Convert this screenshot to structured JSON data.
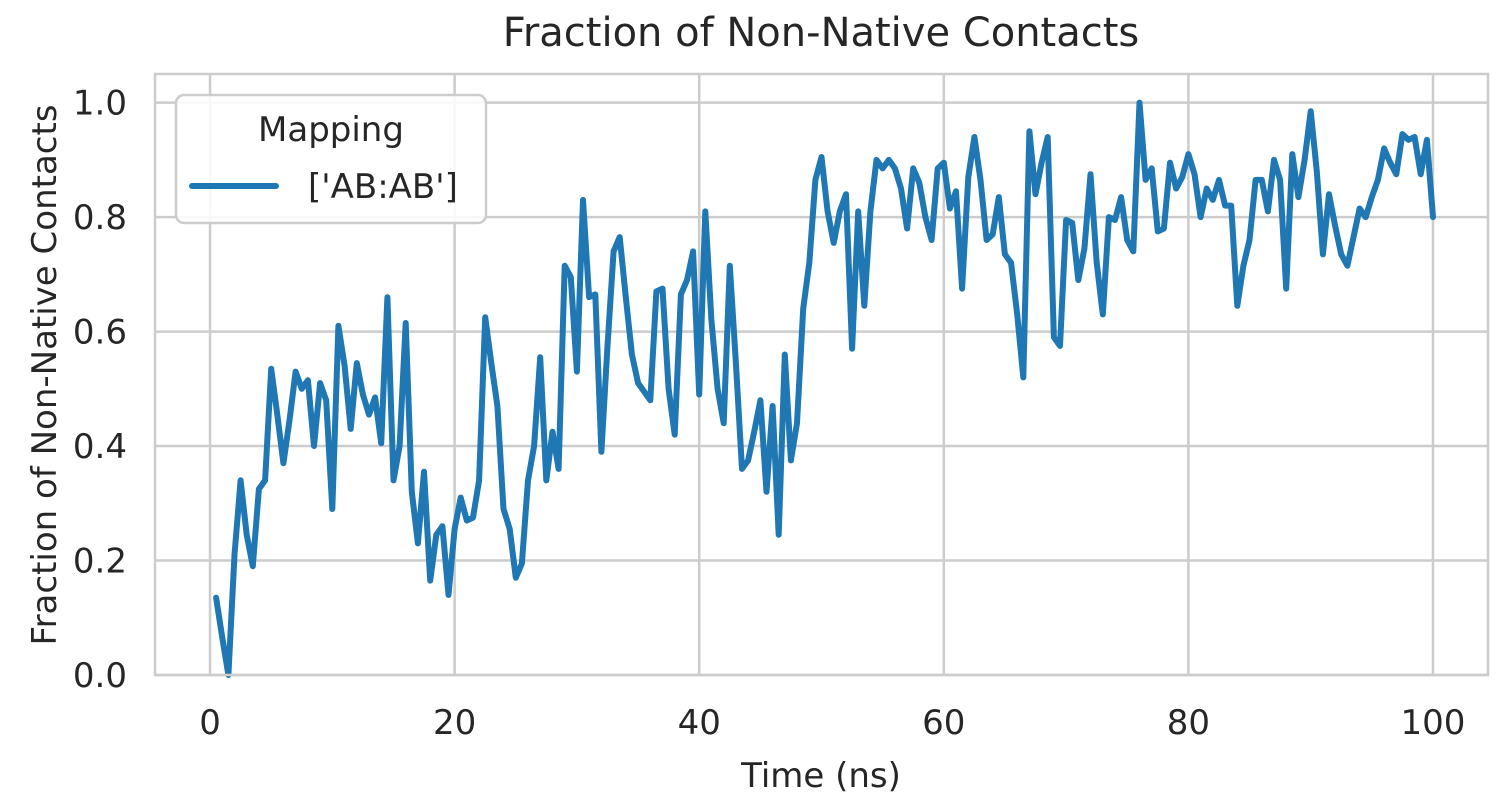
{
  "chart_data": {
    "type": "line",
    "title": "Fraction of Non-Native Contacts",
    "xlabel": "Time (ns)",
    "ylabel": "Fraction of Non-Native Contacts",
    "xlim": [
      -4.5,
      104.5
    ],
    "ylim": [
      0,
      1.05
    ],
    "xticks": [
      0,
      20,
      40,
      60,
      80,
      100
    ],
    "yticks": [
      0.0,
      0.2,
      0.4,
      0.6,
      0.8,
      1.0
    ],
    "xtick_labels": [
      "0",
      "20",
      "40",
      "60",
      "80",
      "100"
    ],
    "ytick_labels": [
      "0.0",
      "0.2",
      "0.4",
      "0.6",
      "0.8",
      "1.0"
    ],
    "grid": true,
    "legend": {
      "title": "Mapping",
      "placement": "upper-left"
    },
    "series": [
      {
        "name": "['AB:AB']",
        "color": "#1f77b4",
        "x": [
          0.5,
          1.0,
          1.5,
          2.0,
          2.5,
          3.0,
          3.5,
          4.0,
          4.5,
          5.0,
          5.5,
          6.0,
          6.5,
          7.0,
          7.5,
          8.0,
          8.5,
          9.0,
          9.5,
          10.0,
          10.5,
          11.0,
          11.5,
          12.0,
          12.5,
          13.0,
          13.5,
          14.0,
          14.5,
          15.0,
          15.5,
          16.0,
          16.5,
          17.0,
          17.5,
          18.0,
          18.5,
          19.0,
          19.5,
          20.0,
          20.5,
          21.0,
          21.5,
          22.0,
          22.5,
          23.0,
          23.5,
          24.0,
          24.5,
          25.0,
          25.5,
          26.0,
          26.5,
          27.0,
          27.5,
          28.0,
          28.5,
          29.0,
          29.5,
          30.0,
          30.5,
          31.0,
          31.5,
          32.0,
          32.5,
          33.0,
          33.5,
          34.0,
          34.5,
          35.0,
          35.5,
          36.0,
          36.5,
          37.0,
          37.5,
          38.0,
          38.5,
          39.0,
          39.5,
          40.0,
          40.5,
          41.0,
          41.5,
          42.0,
          42.5,
          43.0,
          43.5,
          44.0,
          44.5,
          45.0,
          45.5,
          46.0,
          46.5,
          47.0,
          47.5,
          48.0,
          48.5,
          49.0,
          49.5,
          50.0,
          50.5,
          51.0,
          51.5,
          52.0,
          52.5,
          53.0,
          53.5,
          54.0,
          54.5,
          55.0,
          55.5,
          56.0,
          56.5,
          57.0,
          57.5,
          58.0,
          58.5,
          59.0,
          59.5,
          60.0,
          60.5,
          61.0,
          61.5,
          62.0,
          62.5,
          63.0,
          63.5,
          64.0,
          64.5,
          65.0,
          65.5,
          66.0,
          66.5,
          67.0,
          67.5,
          68.0,
          68.5,
          69.0,
          69.5,
          70.0,
          70.5,
          71.0,
          71.5,
          72.0,
          72.5,
          73.0,
          73.5,
          74.0,
          74.5,
          75.0,
          75.5,
          76.0,
          76.5,
          77.0,
          77.5,
          78.0,
          78.5,
          79.0,
          79.5,
          80.0,
          80.5,
          81.0,
          81.5,
          82.0,
          82.5,
          83.0,
          83.5,
          84.0,
          84.5,
          85.0,
          85.5,
          86.0,
          86.5,
          87.0,
          87.5,
          88.0,
          88.5,
          89.0,
          89.5,
          90.0,
          90.5,
          91.0,
          91.5,
          92.0,
          92.5,
          93.0,
          93.5,
          94.0,
          94.5,
          95.0,
          95.5,
          96.0,
          96.5,
          97.0,
          97.5,
          98.0,
          98.5,
          99.0,
          99.5,
          100.0
        ],
        "y": [
          0.135,
          0.065,
          0.0,
          0.21,
          0.34,
          0.245,
          0.19,
          0.325,
          0.34,
          0.535,
          0.455,
          0.37,
          0.445,
          0.53,
          0.5,
          0.515,
          0.4,
          0.51,
          0.48,
          0.29,
          0.61,
          0.54,
          0.43,
          0.545,
          0.49,
          0.455,
          0.485,
          0.405,
          0.66,
          0.34,
          0.4,
          0.615,
          0.32,
          0.23,
          0.355,
          0.165,
          0.245,
          0.26,
          0.14,
          0.255,
          0.31,
          0.27,
          0.275,
          0.34,
          0.625,
          0.545,
          0.47,
          0.29,
          0.255,
          0.17,
          0.195,
          0.34,
          0.4,
          0.555,
          0.34,
          0.425,
          0.36,
          0.715,
          0.695,
          0.53,
          0.83,
          0.66,
          0.665,
          0.39,
          0.575,
          0.74,
          0.765,
          0.66,
          0.56,
          0.51,
          0.495,
          0.48,
          0.67,
          0.675,
          0.5,
          0.42,
          0.665,
          0.69,
          0.74,
          0.49,
          0.81,
          0.62,
          0.5,
          0.44,
          0.715,
          0.545,
          0.36,
          0.375,
          0.425,
          0.48,
          0.32,
          0.47,
          0.245,
          0.56,
          0.375,
          0.44,
          0.64,
          0.72,
          0.865,
          0.905,
          0.81,
          0.755,
          0.81,
          0.84,
          0.57,
          0.81,
          0.645,
          0.81,
          0.9,
          0.885,
          0.9,
          0.885,
          0.85,
          0.78,
          0.885,
          0.86,
          0.8,
          0.76,
          0.885,
          0.895,
          0.815,
          0.845,
          0.675,
          0.87,
          0.94,
          0.865,
          0.76,
          0.77,
          0.835,
          0.735,
          0.72,
          0.63,
          0.52,
          0.95,
          0.84,
          0.895,
          0.94,
          0.59,
          0.575,
          0.795,
          0.79,
          0.69,
          0.745,
          0.875,
          0.72,
          0.63,
          0.8,
          0.795,
          0.835,
          0.76,
          0.74,
          1.0,
          0.865,
          0.885,
          0.775,
          0.78,
          0.895,
          0.85,
          0.87,
          0.91,
          0.875,
          0.8,
          0.85,
          0.83,
          0.865,
          0.82,
          0.82,
          0.645,
          0.715,
          0.76,
          0.865,
          0.865,
          0.81,
          0.9,
          0.865,
          0.675,
          0.91,
          0.835,
          0.9,
          0.985,
          0.88,
          0.735,
          0.84,
          0.785,
          0.735,
          0.715,
          0.765,
          0.815,
          0.8,
          0.835,
          0.865,
          0.92,
          0.895,
          0.875,
          0.945,
          0.935,
          0.94,
          0.875,
          0.935,
          0.8
        ]
      }
    ]
  }
}
